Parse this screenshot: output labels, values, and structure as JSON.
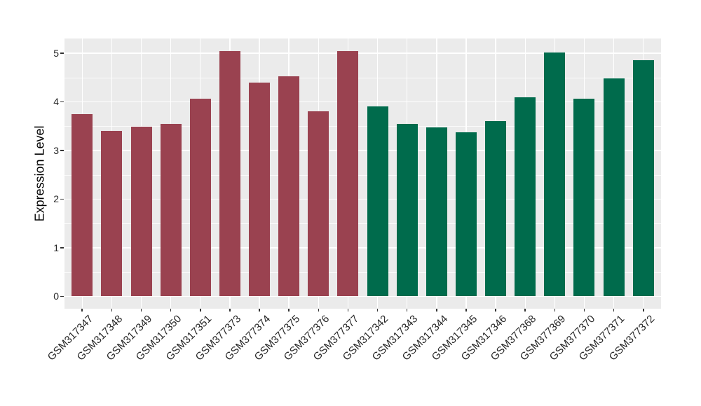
{
  "chart_data": {
    "type": "bar",
    "title": "",
    "xlabel": "",
    "ylabel": "Expression Level",
    "ylim": [
      0,
      5.3
    ],
    "yticks": [
      0,
      1,
      2,
      3,
      4,
      5
    ],
    "grid": "on",
    "legend_position": "none",
    "categories": [
      "GSM317347",
      "GSM317348",
      "GSM317349",
      "GSM317350",
      "GSM317351",
      "GSM377373",
      "GSM377374",
      "GSM377375",
      "GSM377376",
      "GSM377377",
      "GSM317342",
      "GSM317343",
      "GSM317344",
      "GSM317345",
      "GSM317346",
      "GSM377368",
      "GSM377369",
      "GSM377370",
      "GSM377371",
      "GSM377372"
    ],
    "values": [
      3.75,
      3.4,
      3.49,
      3.55,
      4.06,
      5.05,
      4.4,
      4.53,
      3.81,
      5.05,
      3.9,
      3.55,
      3.47,
      3.37,
      3.6,
      4.1,
      5.02,
      4.06,
      4.48,
      4.85
    ],
    "groups": [
      "group1",
      "group1",
      "group1",
      "group1",
      "group1",
      "group1",
      "group1",
      "group1",
      "group1",
      "group1",
      "group2",
      "group2",
      "group2",
      "group2",
      "group2",
      "group2",
      "group2",
      "group2",
      "group2",
      "group2"
    ]
  },
  "style": {
    "group_colors": {
      "group1": "#9A4250",
      "group2": "#006B4C"
    },
    "page_background": "#FFFFFF",
    "panel_background": "#EBEBEB",
    "grid_major_color": "#FFFFFF",
    "grid_minor_color": "#FFFFFF",
    "axis_text_color": "#262626",
    "axis_title_color": "#000000",
    "tick_mark_color": "#333333"
  }
}
